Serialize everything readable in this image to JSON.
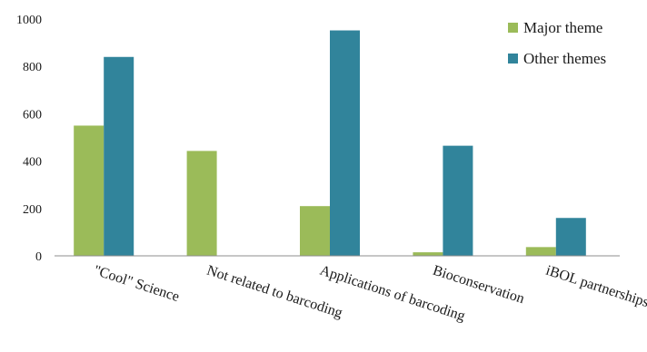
{
  "chart_data": {
    "type": "bar",
    "categories": [
      "\"Cool\" Science",
      "Not related to barcoding",
      "Applications of barcoding",
      "Bioconservation",
      "iBOL partnerships"
    ],
    "series": [
      {
        "name": "Major theme",
        "color": "#9bbb59",
        "values": [
          550,
          443,
          210,
          15,
          37
        ]
      },
      {
        "name": "Other themes",
        "color": "#31849b",
        "values": [
          840,
          0,
          952,
          465,
          160
        ]
      }
    ],
    "yticks": [
      0,
      200,
      400,
      600,
      800,
      1000
    ],
    "ylim": [
      0,
      1000
    ],
    "grid": false,
    "legend_position": "top-right",
    "title": "",
    "xlabel": "",
    "ylabel": ""
  }
}
